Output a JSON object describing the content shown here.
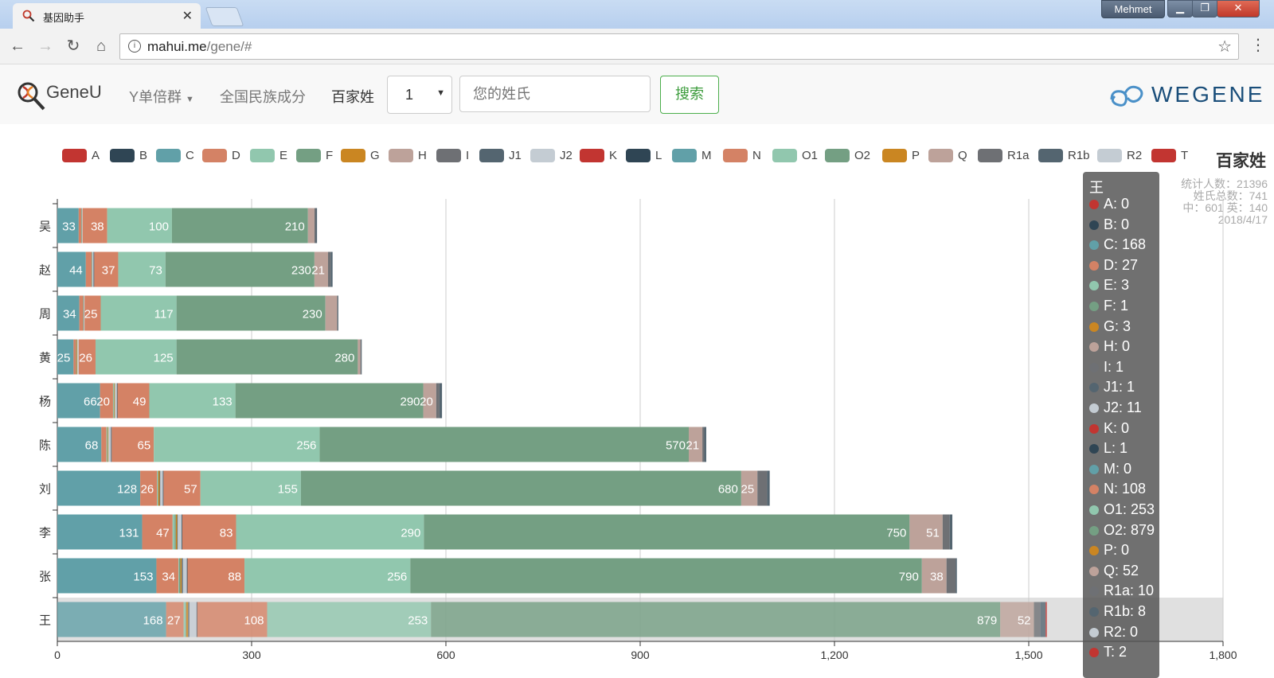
{
  "browser": {
    "tab_title": "基因助手",
    "user_name": "Mehmet",
    "url_host": "mahui.me",
    "url_path": "/gene/#"
  },
  "header": {
    "logo_text": "GeneU",
    "nav_y": "Y单倍群",
    "nav_ethnic": "全国民族成分",
    "nav_surnames": "百家姓",
    "select_value": "1",
    "search_placeholder": "您的姓氏",
    "search_button": "搜索",
    "brand": "WEGENE"
  },
  "stats": {
    "line1": "统计人数：21396",
    "line2": "姓氏总数：741",
    "line3": "中：601 英：140",
    "line4": "2018/4/17"
  },
  "colors": {
    "A": "#c23531",
    "B": "#2f4554",
    "C": "#61a0a8",
    "D": "#d48265",
    "E": "#91c7ae",
    "F": "#749f83",
    "G": "#ca8622",
    "H": "#bda29a",
    "I": "#6e7074",
    "J1": "#546570",
    "J2": "#c4ccd3",
    "K": "#c23531",
    "L": "#2f4554",
    "M": "#61a0a8",
    "N": "#d48265",
    "O1": "#91c7ae",
    "O2": "#749f83",
    "P": "#ca8622",
    "Q": "#bda29a",
    "R1a": "#6e7074",
    "R1b": "#546570",
    "R2": "#c4ccd3",
    "T": "#c23531"
  },
  "chart_data": {
    "type": "bar",
    "orientation": "horizontal-stacked",
    "title": "百家姓",
    "categories": [
      "王",
      "张",
      "李",
      "刘",
      "陈",
      "杨",
      "黄",
      "周",
      "赵",
      "吴"
    ],
    "xlim": [
      0,
      1800
    ],
    "xticks": [
      "0",
      "300",
      "600",
      "900",
      "1,200",
      "1,500",
      "1,800"
    ],
    "grid": true,
    "legend_position": "top",
    "series": [
      {
        "name": "A",
        "values": [
          0,
          0,
          0,
          0,
          0,
          0,
          0,
          0,
          0,
          0
        ]
      },
      {
        "name": "B",
        "values": [
          0,
          0,
          0,
          0,
          0,
          0,
          0,
          0,
          0,
          0
        ]
      },
      {
        "name": "C",
        "values": [
          168,
          153,
          131,
          128,
          68,
          66,
          25,
          34,
          44,
          33
        ]
      },
      {
        "name": "D",
        "values": [
          27,
          34,
          47,
          26,
          8,
          20,
          4,
          6,
          9,
          4
        ]
      },
      {
        "name": "E",
        "values": [
          3,
          1,
          3,
          1,
          1,
          1,
          0,
          0,
          0,
          0
        ]
      },
      {
        "name": "F",
        "values": [
          1,
          2,
          2,
          1,
          1,
          1,
          1,
          1,
          1,
          1
        ]
      },
      {
        "name": "G",
        "values": [
          3,
          2,
          2,
          2,
          1,
          1,
          1,
          0,
          0,
          0
        ]
      },
      {
        "name": "H",
        "values": [
          0,
          0,
          0,
          0,
          0,
          0,
          0,
          0,
          0,
          0
        ]
      },
      {
        "name": "I",
        "values": [
          1,
          1,
          0,
          0,
          0,
          0,
          0,
          0,
          0,
          0
        ]
      },
      {
        "name": "J1",
        "values": [
          1,
          1,
          1,
          1,
          0,
          0,
          0,
          0,
          0,
          0
        ]
      },
      {
        "name": "J2",
        "values": [
          11,
          6,
          6,
          4,
          4,
          3,
          2,
          1,
          2,
          1
        ]
      },
      {
        "name": "K",
        "values": [
          0,
          0,
          0,
          0,
          0,
          0,
          0,
          0,
          0,
          0
        ]
      },
      {
        "name": "L",
        "values": [
          1,
          1,
          1,
          1,
          1,
          1,
          0,
          0,
          1,
          0
        ]
      },
      {
        "name": "M",
        "values": [
          0,
          0,
          0,
          0,
          0,
          0,
          0,
          0,
          0,
          0
        ]
      },
      {
        "name": "N",
        "values": [
          108,
          88,
          83,
          57,
          65,
          49,
          26,
          25,
          37,
          38
        ]
      },
      {
        "name": "O1",
        "values": [
          253,
          256,
          290,
          155,
          256,
          133,
          125,
          117,
          73,
          100
        ]
      },
      {
        "name": "O2",
        "values": [
          879,
          790,
          750,
          680,
          570,
          290,
          280,
          230,
          230,
          210
        ]
      },
      {
        "name": "P",
        "values": [
          0,
          0,
          0,
          0,
          0,
          0,
          0,
          0,
          0,
          0
        ]
      },
      {
        "name": "Q",
        "values": [
          52,
          38,
          51,
          25,
          21,
          20,
          4,
          18,
          21,
          10
        ]
      },
      {
        "name": "R1a",
        "values": [
          10,
          14,
          11,
          15,
          3,
          5,
          1,
          1,
          4,
          2
        ]
      },
      {
        "name": "R1b",
        "values": [
          8,
          2,
          4,
          4,
          3,
          4,
          1,
          1,
          3,
          2
        ]
      },
      {
        "name": "R2",
        "values": [
          0,
          0,
          0,
          0,
          0,
          0,
          0,
          0,
          0,
          0
        ]
      },
      {
        "name": "T",
        "values": [
          2,
          0,
          0,
          0,
          0,
          0,
          0,
          0,
          0,
          0
        ]
      }
    ]
  },
  "tooltip": {
    "title": "王",
    "rows": [
      {
        "key": "A",
        "text": "A: 0"
      },
      {
        "key": "B",
        "text": "B: 0"
      },
      {
        "key": "C",
        "text": "C: 168"
      },
      {
        "key": "D",
        "text": "D: 27"
      },
      {
        "key": "E",
        "text": "E: 3"
      },
      {
        "key": "F",
        "text": "F: 1"
      },
      {
        "key": "G",
        "text": "G: 3"
      },
      {
        "key": "H",
        "text": "H: 0"
      },
      {
        "key": "I",
        "text": "I: 1"
      },
      {
        "key": "J1",
        "text": "J1: 1"
      },
      {
        "key": "J2",
        "text": "J2: 11"
      },
      {
        "key": "K",
        "text": "K: 0"
      },
      {
        "key": "L",
        "text": "L: 1"
      },
      {
        "key": "M",
        "text": "M: 0"
      },
      {
        "key": "N",
        "text": "N: 108"
      },
      {
        "key": "O1",
        "text": "O1: 253"
      },
      {
        "key": "O2",
        "text": "O2: 879"
      },
      {
        "key": "P",
        "text": "P: 0"
      },
      {
        "key": "Q",
        "text": "Q: 52"
      },
      {
        "key": "R1a",
        "text": "R1a: 10"
      },
      {
        "key": "R1b",
        "text": "R1b: 8"
      },
      {
        "key": "R2",
        "text": "R2: 0"
      },
      {
        "key": "T",
        "text": "T: 2"
      }
    ]
  }
}
